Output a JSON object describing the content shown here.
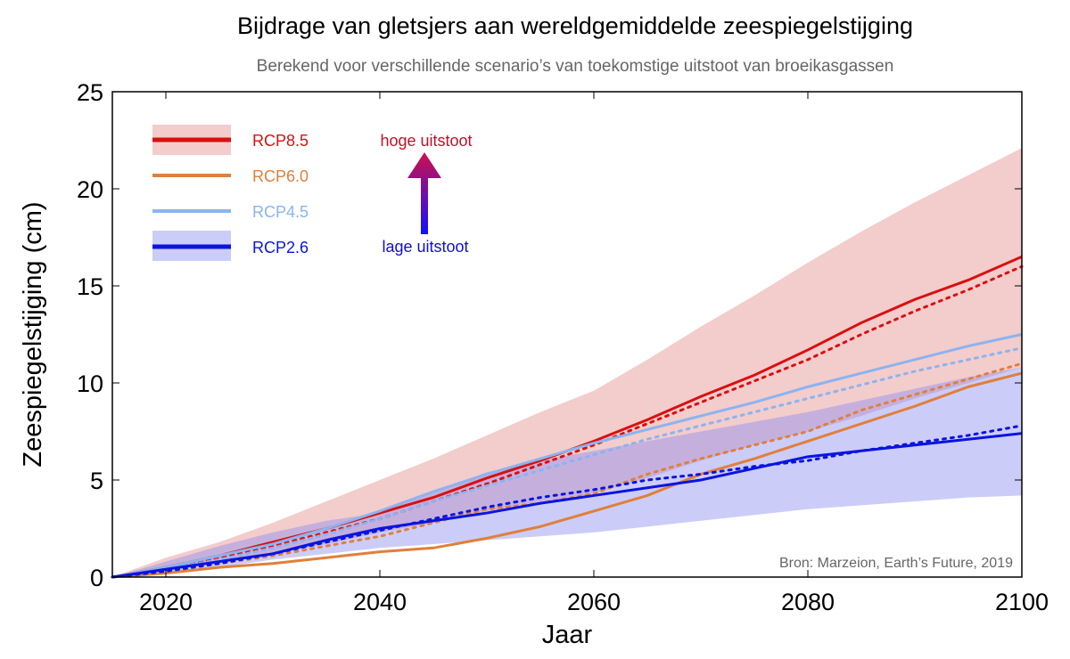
{
  "chart_data": {
    "type": "line",
    "title": "Bijdrage van gletsjers aan wereldgemiddelde zeespiegelstijging",
    "subtitle": "Berekend voor verschillende scenario’s van toekomstige uitstoot van broeikasgassen",
    "xlabel": "Jaar",
    "ylabel": "Zeespiegelstijging (cm)",
    "xlim": [
      2015,
      2100
    ],
    "ylim": [
      0,
      25
    ],
    "xticks": [
      2020,
      2040,
      2060,
      2080,
      2100
    ],
    "yticks": [
      0,
      5,
      10,
      15,
      20,
      25
    ],
    "x": [
      2015,
      2020,
      2025,
      2030,
      2035,
      2040,
      2045,
      2050,
      2055,
      2060,
      2065,
      2070,
      2075,
      2080,
      2085,
      2090,
      2095,
      2100
    ],
    "bands": [
      {
        "name": "RCP8.5 range",
        "color": "#e9a3a3",
        "upper": [
          0,
          1.0,
          1.8,
          2.8,
          3.9,
          5.0,
          6.1,
          7.3,
          8.5,
          9.6,
          11.2,
          12.9,
          14.5,
          16.2,
          17.8,
          19.3,
          20.7,
          22.1
        ],
        "lower": [
          0,
          0.3,
          0.7,
          1.2,
          1.7,
          2.3,
          2.8,
          3.4,
          3.9,
          4.3,
          5.1,
          6.0,
          6.8,
          7.5,
          8.3,
          9.2,
          10.0,
          10.8
        ]
      },
      {
        "name": "RCP2.6 range",
        "color": "#8f8ff2",
        "upper": [
          0,
          0.8,
          1.6,
          2.3,
          2.9,
          3.3,
          4.4,
          5.4,
          6.0,
          6.5,
          7.0,
          7.5,
          8.0,
          8.5,
          9.1,
          9.7,
          10.3,
          10.8
        ],
        "lower": [
          0,
          0.2,
          0.5,
          0.9,
          1.2,
          1.5,
          1.7,
          1.9,
          2.1,
          2.3,
          2.6,
          2.9,
          3.2,
          3.5,
          3.7,
          3.9,
          4.1,
          4.2
        ]
      }
    ],
    "series": [
      {
        "name": "RCP8.5",
        "color": "#d91010",
        "values": [
          0,
          0.5,
          1.1,
          1.8,
          2.5,
          3.3,
          4.1,
          5.1,
          6.0,
          7.0,
          8.1,
          9.3,
          10.4,
          11.7,
          13.1,
          14.3,
          15.3,
          16.5
        ],
        "projection": [
          0,
          0.4,
          1.0,
          1.6,
          2.3,
          3.0,
          3.9,
          4.8,
          5.8,
          6.8,
          7.9,
          9.0,
          10.1,
          11.2,
          12.5,
          13.7,
          14.8,
          16.0
        ]
      },
      {
        "name": "RCP6.0",
        "color": "#e0803a",
        "values": [
          0,
          0.2,
          0.5,
          0.7,
          1.0,
          1.3,
          1.5,
          2.0,
          2.6,
          3.4,
          4.2,
          5.3,
          6.1,
          7.0,
          7.9,
          8.8,
          9.8,
          10.5
        ],
        "projection": [
          0,
          0.3,
          0.7,
          1.1,
          1.6,
          2.1,
          2.8,
          3.5,
          3.8,
          4.3,
          5.3,
          6.1,
          6.8,
          7.5,
          8.6,
          9.4,
          10.2,
          11.0
        ]
      },
      {
        "name": "RCP4.5",
        "color": "#8ab4f0",
        "values": [
          0,
          0.5,
          1.1,
          1.7,
          2.5,
          3.4,
          4.4,
          5.3,
          6.1,
          6.9,
          7.6,
          8.3,
          9.0,
          9.8,
          10.5,
          11.2,
          11.9,
          12.5
        ],
        "projection": [
          0,
          0.4,
          0.9,
          1.5,
          2.2,
          3.0,
          3.9,
          4.7,
          5.5,
          6.3,
          7.1,
          7.8,
          8.5,
          9.2,
          9.9,
          10.6,
          11.2,
          11.8
        ]
      },
      {
        "name": "RCP2.6",
        "color": "#0a14e0",
        "values": [
          0,
          0.4,
          0.8,
          1.2,
          1.9,
          2.5,
          2.9,
          3.3,
          3.8,
          4.2,
          4.6,
          5.0,
          5.6,
          6.2,
          6.5,
          6.8,
          7.1,
          7.4
        ],
        "projection": [
          0,
          0.3,
          0.7,
          1.2,
          1.8,
          2.4,
          3.0,
          3.6,
          4.1,
          4.5,
          5.0,
          5.3,
          5.7,
          6.0,
          6.5,
          6.9,
          7.3,
          7.8
        ]
      }
    ],
    "legend": {
      "placement": "top-left",
      "entries": [
        "RCP8.5",
        "RCP6.0",
        "RCP4.5",
        "RCP2.6"
      ]
    },
    "annotations": {
      "high": "hoge uitstoot",
      "low": "lage uitstoot",
      "source": "Bron:  Marzeion, Earth’s Future, 2019"
    }
  }
}
